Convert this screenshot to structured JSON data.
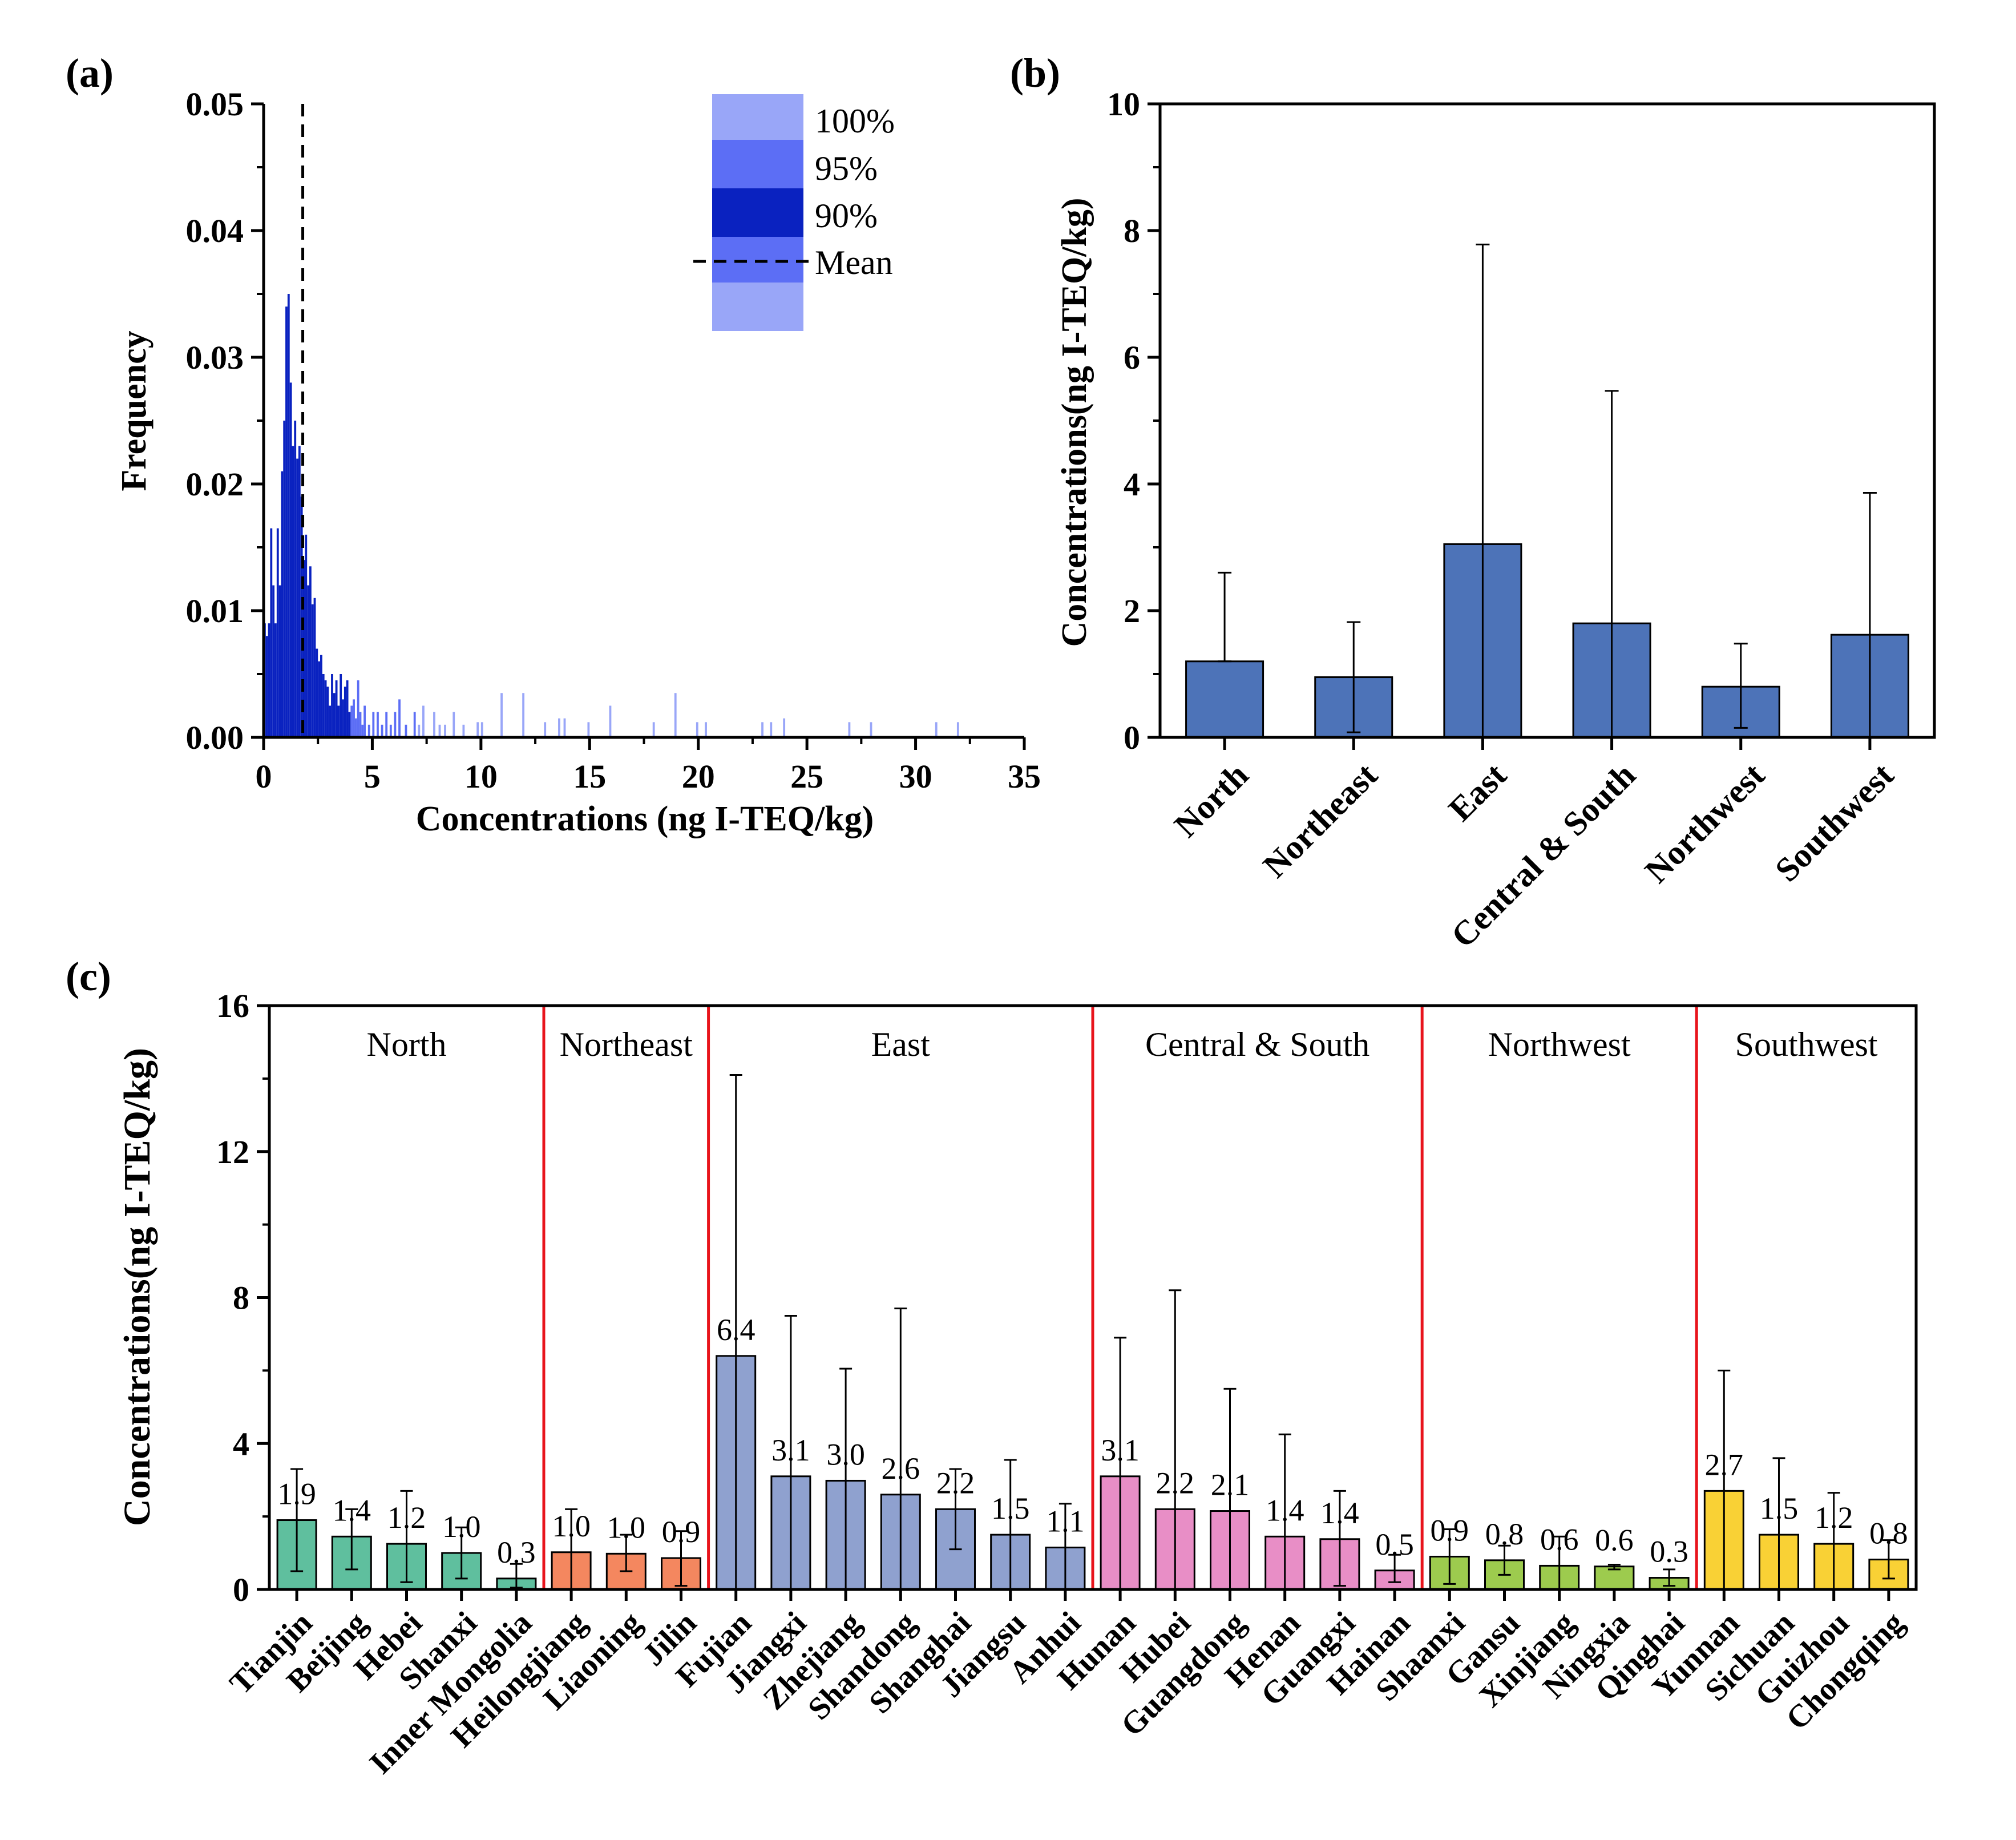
{
  "chart_data": [
    {
      "panel_label": "(a)",
      "type": "histogram",
      "xlabel": "Concentrations (ng I-TEQ/kg)",
      "ylabel": "Frequency",
      "xlim": [
        0,
        35
      ],
      "ylim": [
        0,
        0.05
      ],
      "x_ticks": [
        "0",
        "5",
        "10",
        "15",
        "20",
        "25",
        "30",
        "35"
      ],
      "y_ticks": [
        "0.00",
        "0.01",
        "0.02",
        "0.03",
        "0.04",
        "0.05"
      ],
      "mean": 1.8,
      "legend": {
        "p100": "100%",
        "p95": "95%",
        "p90": "90%",
        "mean": "Mean"
      },
      "colors": {
        "p90": "#0a22c0",
        "p95": "#5c6ef5",
        "p100": "#99a6f8"
      },
      "bins_90": [
        [
          0.05,
          0.009
        ],
        [
          0.15,
          0.008
        ],
        [
          0.25,
          0.009
        ],
        [
          0.35,
          0.0165
        ],
        [
          0.45,
          0.012
        ],
        [
          0.55,
          0.009
        ],
        [
          0.65,
          0.0165
        ],
        [
          0.75,
          0.012
        ],
        [
          0.85,
          0.021
        ],
        [
          0.95,
          0.025
        ],
        [
          1.05,
          0.034
        ],
        [
          1.15,
          0.035
        ],
        [
          1.25,
          0.028
        ],
        [
          1.35,
          0.023
        ],
        [
          1.45,
          0.025
        ],
        [
          1.55,
          0.022
        ],
        [
          1.65,
          0.023
        ],
        [
          1.75,
          0.019
        ],
        [
          1.85,
          0.014
        ],
        [
          1.95,
          0.016
        ],
        [
          2.05,
          0.012
        ],
        [
          2.15,
          0.0135
        ],
        [
          2.25,
          0.0105
        ],
        [
          2.35,
          0.011
        ],
        [
          2.45,
          0.007
        ],
        [
          2.55,
          0.006
        ],
        [
          2.65,
          0.0065
        ],
        [
          2.75,
          0.005
        ],
        [
          2.85,
          0.0045
        ],
        [
          2.95,
          0.004
        ],
        [
          3.05,
          0.0025
        ],
        [
          3.15,
          0.005
        ],
        [
          3.25,
          0.0035
        ],
        [
          3.35,
          0.0045
        ],
        [
          3.45,
          0.0025
        ],
        [
          3.55,
          0.005
        ],
        [
          3.65,
          0.003
        ],
        [
          3.75,
          0.004
        ],
        [
          3.85,
          0.0045
        ],
        [
          3.95,
          0.002
        ]
      ],
      "bins_95": [
        [
          4.05,
          0.0025
        ],
        [
          4.15,
          0.003
        ],
        [
          4.25,
          0.0015
        ],
        [
          4.35,
          0.0045
        ],
        [
          4.45,
          0.002
        ],
        [
          4.55,
          0.001
        ],
        [
          4.65,
          0.0025
        ],
        [
          4.85,
          0.001
        ],
        [
          5.05,
          0.002
        ],
        [
          5.25,
          0.002
        ],
        [
          5.45,
          0.001
        ],
        [
          5.65,
          0.002
        ],
        [
          5.85,
          0.001
        ],
        [
          6.05,
          0.002
        ],
        [
          6.25,
          0.003
        ],
        [
          6.55,
          0.001
        ],
        [
          6.95,
          0.002
        ]
      ],
      "bins_100": [
        [
          7.15,
          0.001
        ],
        [
          7.35,
          0.0025
        ],
        [
          7.85,
          0.002
        ],
        [
          8.1,
          0.001
        ],
        [
          8.35,
          0.001
        ],
        [
          8.75,
          0.002
        ],
        [
          9.2,
          0.001
        ],
        [
          9.85,
          0.0012
        ],
        [
          10.05,
          0.0012
        ],
        [
          10.95,
          0.0035
        ],
        [
          11.95,
          0.0035
        ],
        [
          12.95,
          0.0012
        ],
        [
          13.6,
          0.0015
        ],
        [
          13.85,
          0.0015
        ],
        [
          14.95,
          0.0012
        ],
        [
          15.95,
          0.0025
        ],
        [
          17.95,
          0.0012
        ],
        [
          18.95,
          0.0035
        ],
        [
          19.95,
          0.0012
        ],
        [
          20.35,
          0.0012
        ],
        [
          22.95,
          0.0012
        ],
        [
          23.35,
          0.0012
        ],
        [
          23.95,
          0.0015
        ],
        [
          26.95,
          0.0012
        ],
        [
          27.95,
          0.0012
        ],
        [
          30.95,
          0.0012
        ],
        [
          31.95,
          0.0012
        ]
      ]
    },
    {
      "panel_label": "(b)",
      "type": "bar",
      "ylabel": "Concentrations(ng I-TEQ/kg)",
      "ylim": [
        0,
        10
      ],
      "y_ticks": [
        "0",
        "2",
        "4",
        "6",
        "8",
        "10"
      ],
      "color": "#4d73b8",
      "categories": [
        "North",
        "Northeast",
        "East",
        "Central & South",
        "Northwest",
        "Southwest"
      ],
      "values": [
        1.2,
        0.95,
        3.05,
        1.8,
        0.8,
        1.62
      ],
      "err_low": [
        1.2,
        0.08,
        0.0,
        0.0,
        0.15,
        0.0
      ],
      "err_high": [
        2.6,
        1.82,
        7.78,
        5.47,
        1.48,
        3.86
      ]
    },
    {
      "panel_label": "(c)",
      "type": "bar",
      "ylabel": "Concentrations(ng I-TEQ/kg)",
      "ylim": [
        0,
        16
      ],
      "y_ticks": [
        "0",
        "4",
        "8",
        "12",
        "16"
      ],
      "divider_color": "#e8141c",
      "groups": [
        {
          "name": "North",
          "color": "#5fbf9e",
          "labels": [
            "Tianjin",
            "Beijing",
            "Hebei",
            "Shanxi",
            "Inner Mongolia"
          ],
          "values": [
            1.9,
            1.45,
            1.25,
            1.0,
            0.3
          ],
          "texts": [
            "1.9",
            "1.4",
            "1.2",
            "1.0",
            "0.3"
          ],
          "err_low": [
            0.5,
            0.55,
            0.2,
            0.3,
            0.05
          ],
          "err_high": [
            3.3,
            2.2,
            2.7,
            1.7,
            0.7
          ]
        },
        {
          "name": "Northeast",
          "color": "#f4875f",
          "labels": [
            "Heilongjiang",
            "Liaoning",
            "Jilin"
          ],
          "values": [
            1.02,
            0.98,
            0.86
          ],
          "texts": [
            "1.0",
            "1.0",
            "0.9"
          ],
          "err_low": [
            0.0,
            0.5,
            0.1
          ],
          "err_high": [
            2.2,
            1.5,
            1.6
          ]
        },
        {
          "name": "East",
          "color": "#8fa1cf",
          "labels": [
            "Fujian",
            "Jiangxi",
            "Zhejiang",
            "Shandong",
            "Shanghai",
            "Jiangsu",
            "Anhui"
          ],
          "values": [
            6.4,
            3.1,
            2.98,
            2.6,
            2.2,
            1.5,
            1.15
          ],
          "texts": [
            "6.4",
            "3.1",
            "3.0",
            "2.6",
            "2.2",
            "1.5",
            "1.1"
          ],
          "err_low": [
            0.0,
            0.0,
            0.0,
            0.0,
            1.1,
            0.0,
            0.0
          ],
          "err_high": [
            14.1,
            7.5,
            6.05,
            7.7,
            3.3,
            3.55,
            2.35
          ]
        },
        {
          "name": "Central & South",
          "color": "#e88ec6",
          "labels": [
            "Hunan",
            "Hubei",
            "Guangdong",
            "Henan",
            "Guangxi",
            "Hainan"
          ],
          "values": [
            3.1,
            2.2,
            2.15,
            1.45,
            1.38,
            0.52
          ],
          "texts": [
            "3.1",
            "2.2",
            "2.1",
            "1.4",
            "1.4",
            "0.5"
          ],
          "err_low": [
            0.0,
            0.0,
            0.0,
            0.0,
            0.1,
            0.2
          ],
          "err_high": [
            6.9,
            8.2,
            5.5,
            4.25,
            2.7,
            0.95
          ]
        },
        {
          "name": "Northwest",
          "color": "#9dcb4e",
          "labels": [
            "Shaanxi",
            "Gansu",
            "Xinjiang",
            "Ningxia",
            "Qinghai"
          ],
          "values": [
            0.9,
            0.8,
            0.65,
            0.63,
            0.32
          ],
          "texts": [
            "0.9",
            "0.8",
            "0.6",
            "0.6",
            "0.3"
          ],
          "err_low": [
            0.15,
            0.4,
            0.0,
            0.55,
            0.1
          ],
          "err_high": [
            1.65,
            1.2,
            1.45,
            0.68,
            0.55
          ]
        },
        {
          "name": "Southwest",
          "color": "#f9d135",
          "labels": [
            "Yunnan",
            "Sichuan",
            "Guizhou",
            "Chongqing"
          ],
          "values": [
            2.7,
            1.5,
            1.25,
            0.82
          ],
          "texts": [
            "2.7",
            "1.5",
            "1.2",
            "0.8"
          ],
          "err_low": [
            0.0,
            0.0,
            0.0,
            0.3
          ],
          "err_high": [
            6.0,
            3.6,
            2.65,
            1.35
          ]
        }
      ]
    }
  ]
}
